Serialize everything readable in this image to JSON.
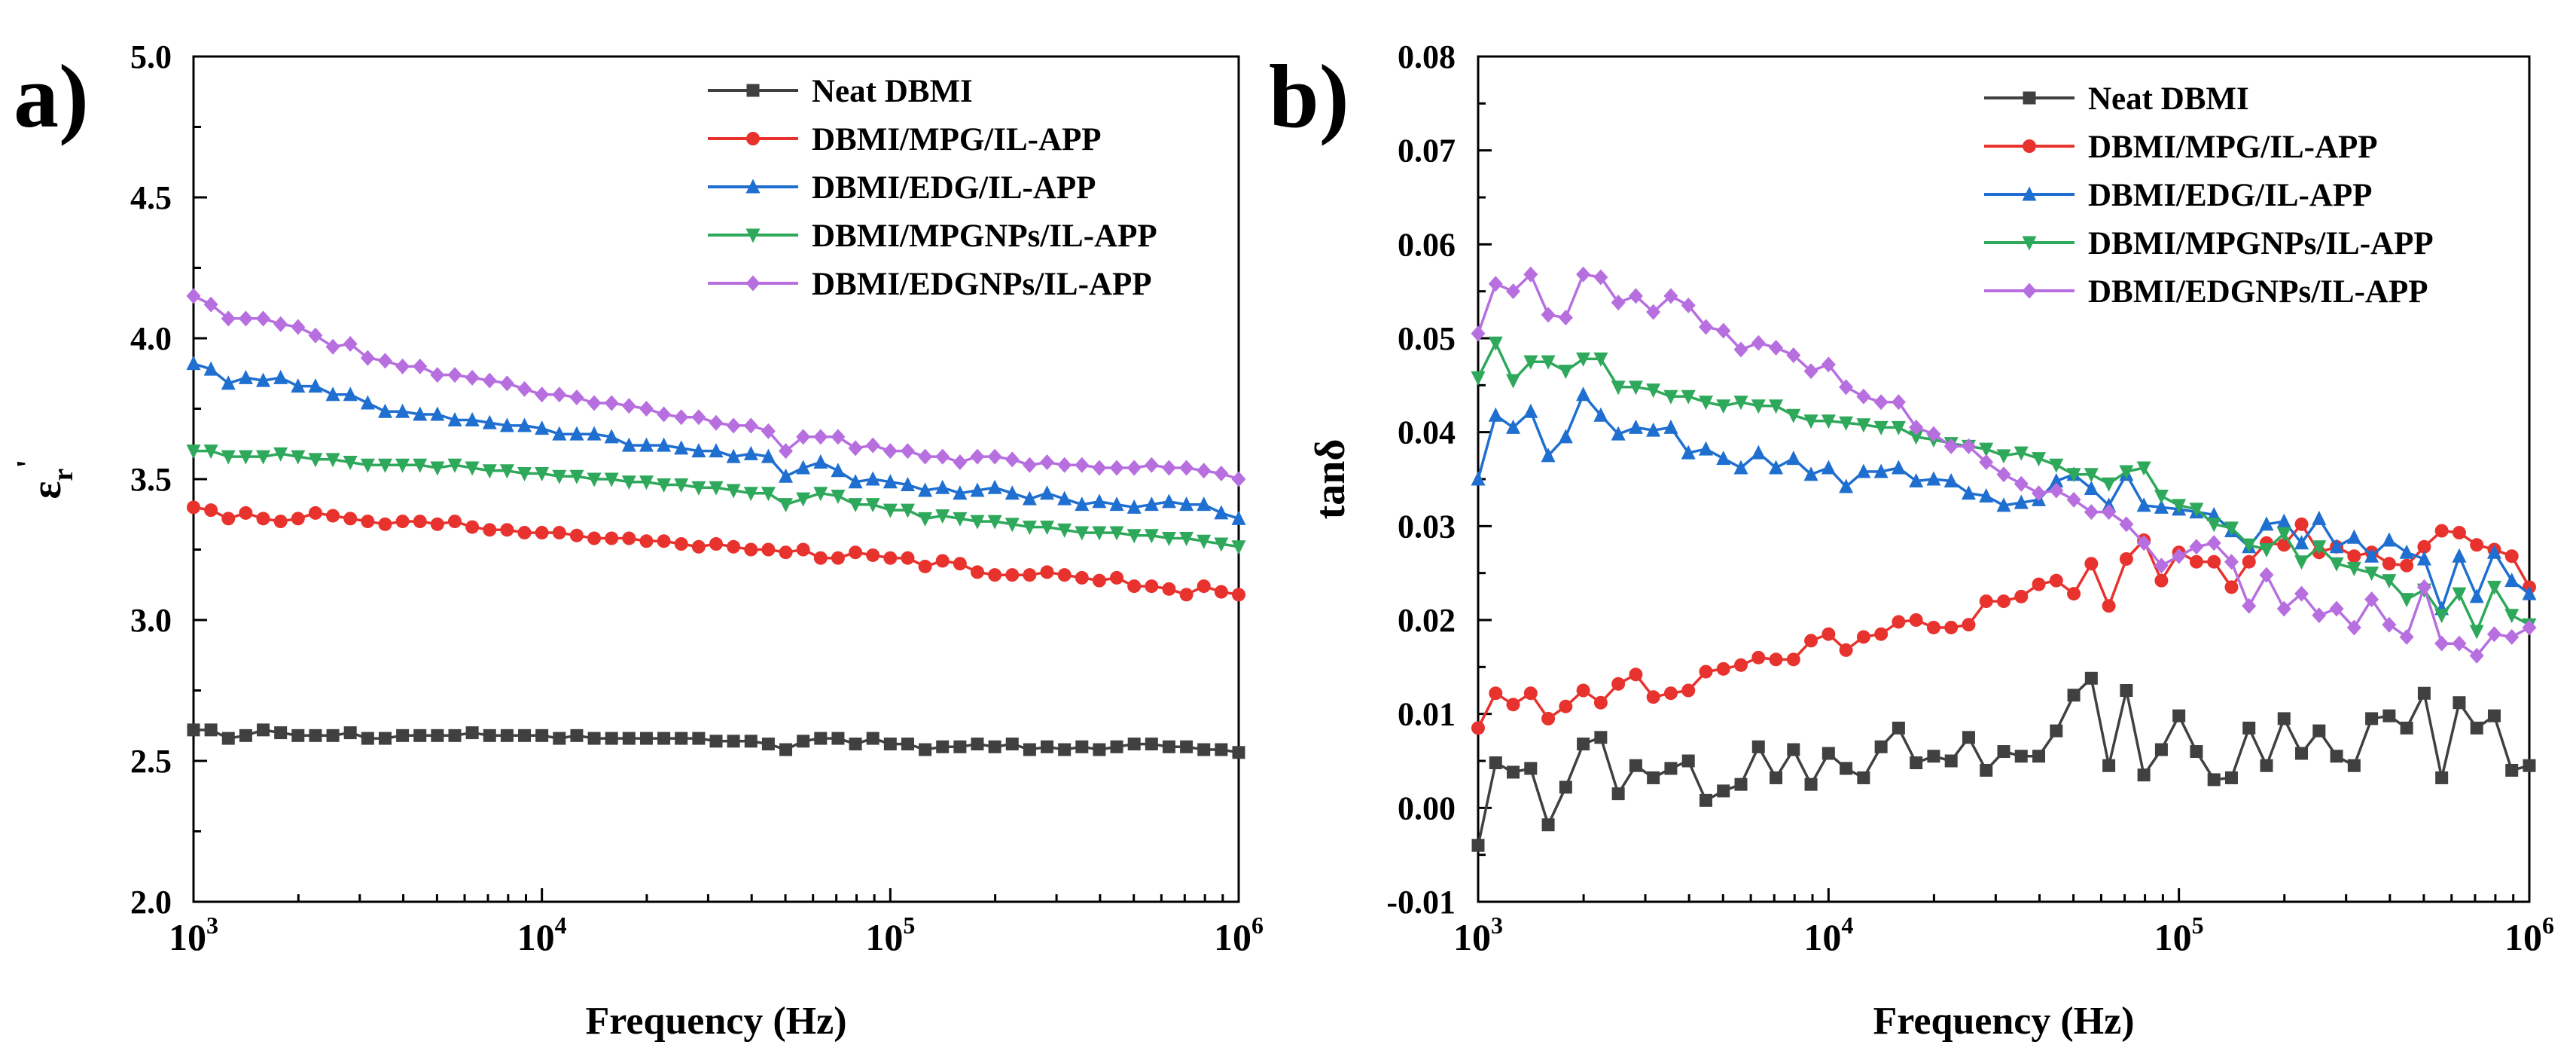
{
  "chart_data": [
    {
      "panel_label": "a)",
      "type": "line",
      "x_scale": "log",
      "xlabel": "Frequency (Hz)",
      "ylabel": "ε",
      "ylabel_sub": "r",
      "ylabel_sup": "'",
      "xlim": [
        1000,
        1000000
      ],
      "ylim": [
        2.0,
        5.0
      ],
      "yticks": [
        2.0,
        2.5,
        3.0,
        3.5,
        4.0,
        4.5,
        5.0
      ],
      "ytick_labels": [
        "2.0",
        "2.5",
        "3.0",
        "3.5",
        "4.0",
        "4.5",
        "5.0"
      ],
      "xticks": [
        1000,
        10000,
        100000,
        1000000
      ],
      "xtick_base": [
        "10",
        "10",
        "10",
        "10"
      ],
      "xtick_exp": [
        "3",
        "4",
        "5",
        "6"
      ],
      "legend_position": "top-right",
      "n_points": 61,
      "series": [
        {
          "name": "Neat DBMI",
          "color": "#404040",
          "marker": "square",
          "values": [
            2.61,
            2.61,
            2.58,
            2.59,
            2.61,
            2.6,
            2.59,
            2.59,
            2.59,
            2.6,
            2.58,
            2.58,
            2.59,
            2.59,
            2.59,
            2.59,
            2.6,
            2.59,
            2.59,
            2.59,
            2.59,
            2.58,
            2.59,
            2.58,
            2.58,
            2.58,
            2.58,
            2.58,
            2.58,
            2.58,
            2.57,
            2.57,
            2.57,
            2.56,
            2.54,
            2.57,
            2.58,
            2.58,
            2.56,
            2.58,
            2.56,
            2.56,
            2.54,
            2.55,
            2.55,
            2.56,
            2.55,
            2.56,
            2.54,
            2.55,
            2.54,
            2.55,
            2.54,
            2.55,
            2.56,
            2.56,
            2.55,
            2.55,
            2.54,
            2.54,
            2.53
          ]
        },
        {
          "name": "DBMI/MPG/IL-APP",
          "color": "#e8322e",
          "marker": "circle",
          "values": [
            3.4,
            3.39,
            3.36,
            3.38,
            3.36,
            3.35,
            3.36,
            3.38,
            3.37,
            3.36,
            3.35,
            3.34,
            3.35,
            3.35,
            3.34,
            3.35,
            3.33,
            3.32,
            3.32,
            3.31,
            3.31,
            3.31,
            3.3,
            3.29,
            3.29,
            3.29,
            3.28,
            3.28,
            3.27,
            3.26,
            3.27,
            3.26,
            3.25,
            3.25,
            3.24,
            3.25,
            3.22,
            3.22,
            3.24,
            3.23,
            3.22,
            3.22,
            3.19,
            3.21,
            3.2,
            3.17,
            3.16,
            3.16,
            3.16,
            3.17,
            3.16,
            3.15,
            3.14,
            3.15,
            3.12,
            3.12,
            3.11,
            3.09,
            3.12,
            3.1,
            3.09
          ]
        },
        {
          "name": "DBMI/EDG/IL-APP",
          "color": "#1f6fd0",
          "marker": "triangle-up",
          "values": [
            3.91,
            3.89,
            3.84,
            3.86,
            3.85,
            3.86,
            3.83,
            3.83,
            3.8,
            3.8,
            3.77,
            3.74,
            3.74,
            3.73,
            3.73,
            3.71,
            3.71,
            3.7,
            3.69,
            3.69,
            3.68,
            3.66,
            3.66,
            3.66,
            3.65,
            3.62,
            3.62,
            3.62,
            3.61,
            3.6,
            3.6,
            3.58,
            3.59,
            3.58,
            3.51,
            3.54,
            3.56,
            3.53,
            3.49,
            3.5,
            3.49,
            3.48,
            3.46,
            3.47,
            3.45,
            3.46,
            3.47,
            3.45,
            3.43,
            3.45,
            3.43,
            3.41,
            3.42,
            3.41,
            3.4,
            3.41,
            3.42,
            3.41,
            3.41,
            3.38,
            3.36
          ]
        },
        {
          "name": "DBMI/MPGNPs/IL-APP",
          "color": "#2ea85a",
          "marker": "triangle-down",
          "values": [
            3.6,
            3.6,
            3.58,
            3.58,
            3.58,
            3.59,
            3.58,
            3.57,
            3.57,
            3.56,
            3.55,
            3.55,
            3.55,
            3.55,
            3.54,
            3.55,
            3.54,
            3.53,
            3.53,
            3.52,
            3.52,
            3.51,
            3.51,
            3.5,
            3.5,
            3.49,
            3.49,
            3.48,
            3.48,
            3.47,
            3.47,
            3.46,
            3.45,
            3.45,
            3.41,
            3.43,
            3.45,
            3.44,
            3.41,
            3.41,
            3.39,
            3.39,
            3.36,
            3.37,
            3.36,
            3.35,
            3.35,
            3.34,
            3.33,
            3.33,
            3.32,
            3.31,
            3.31,
            3.31,
            3.3,
            3.3,
            3.29,
            3.29,
            3.28,
            3.27,
            3.26
          ]
        },
        {
          "name": "DBMI/EDGNPs/IL-APP",
          "color": "#b76fe0",
          "marker": "diamond",
          "values": [
            4.15,
            4.12,
            4.07,
            4.07,
            4.07,
            4.05,
            4.04,
            4.01,
            3.97,
            3.98,
            3.93,
            3.92,
            3.9,
            3.9,
            3.87,
            3.87,
            3.86,
            3.85,
            3.84,
            3.82,
            3.8,
            3.8,
            3.79,
            3.77,
            3.77,
            3.76,
            3.75,
            3.73,
            3.72,
            3.72,
            3.7,
            3.69,
            3.69,
            3.67,
            3.6,
            3.65,
            3.65,
            3.65,
            3.61,
            3.62,
            3.6,
            3.6,
            3.58,
            3.58,
            3.56,
            3.58,
            3.58,
            3.57,
            3.55,
            3.56,
            3.55,
            3.55,
            3.54,
            3.54,
            3.54,
            3.55,
            3.54,
            3.54,
            3.53,
            3.52,
            3.5
          ]
        }
      ]
    },
    {
      "panel_label": "b)",
      "type": "line",
      "x_scale": "log",
      "xlabel": "Frequency (Hz)",
      "ylabel": "tanδ",
      "xlim": [
        1000,
        1000000
      ],
      "ylim": [
        -0.01,
        0.08
      ],
      "yticks": [
        -0.01,
        0.0,
        0.01,
        0.02,
        0.03,
        0.04,
        0.05,
        0.06,
        0.07,
        0.08
      ],
      "ytick_labels": [
        "-0.01",
        "0.00",
        "0.01",
        "0.02",
        "0.03",
        "0.04",
        "0.05",
        "0.06",
        "0.07",
        "0.08"
      ],
      "xticks": [
        1000,
        10000,
        100000,
        1000000
      ],
      "xtick_base": [
        "10",
        "10",
        "10",
        "10"
      ],
      "xtick_exp": [
        "3",
        "4",
        "5",
        "6"
      ],
      "legend_position": "top-right",
      "n_points": 61,
      "series": [
        {
          "name": "Neat DBMI",
          "color": "#404040",
          "marker": "square",
          "values": [
            -0.004,
            0.0048,
            0.0038,
            0.0042,
            -0.0018,
            0.0022,
            0.0068,
            0.0075,
            0.0015,
            0.0045,
            0.0032,
            0.0042,
            0.005,
            0.0008,
            0.0018,
            0.0025,
            0.0065,
            0.0032,
            0.0062,
            0.0025,
            0.0058,
            0.0042,
            0.0032,
            0.0065,
            0.0085,
            0.0048,
            0.0055,
            0.005,
            0.0075,
            0.004,
            0.006,
            0.0055,
            0.0055,
            0.0082,
            0.012,
            0.0138,
            0.0045,
            0.0125,
            0.0035,
            0.0062,
            0.0098,
            0.006,
            0.003,
            0.0032,
            0.0085,
            0.0045,
            0.0095,
            0.0058,
            0.0082,
            0.0055,
            0.0045,
            0.0095,
            0.0098,
            0.0085,
            0.0122,
            0.0032,
            0.0112,
            0.0085,
            0.0098,
            0.004,
            0.0045
          ]
        },
        {
          "name": "DBMI/MPG/IL-APP",
          "color": "#e8322e",
          "marker": "circle",
          "values": [
            0.0085,
            0.0122,
            0.011,
            0.0122,
            0.0095,
            0.0108,
            0.0125,
            0.0112,
            0.0132,
            0.0142,
            0.0118,
            0.0122,
            0.0125,
            0.0145,
            0.0148,
            0.0152,
            0.016,
            0.0158,
            0.0158,
            0.0178,
            0.0185,
            0.0168,
            0.0182,
            0.0185,
            0.0198,
            0.02,
            0.0192,
            0.0192,
            0.0195,
            0.022,
            0.022,
            0.0225,
            0.0238,
            0.0242,
            0.0228,
            0.026,
            0.0215,
            0.0265,
            0.0285,
            0.0242,
            0.0272,
            0.0262,
            0.0262,
            0.0235,
            0.0262,
            0.0282,
            0.028,
            0.0302,
            0.0272,
            0.0278,
            0.0268,
            0.0272,
            0.026,
            0.0258,
            0.0278,
            0.0295,
            0.0293,
            0.028,
            0.0275,
            0.0268,
            0.0235
          ]
        },
        {
          "name": "DBMI/EDG/IL-APP",
          "color": "#1f6fd0",
          "marker": "triangle-up",
          "values": [
            0.035,
            0.0418,
            0.0405,
            0.0422,
            0.0375,
            0.0395,
            0.044,
            0.0418,
            0.0398,
            0.0405,
            0.0402,
            0.0405,
            0.0378,
            0.0382,
            0.0372,
            0.0362,
            0.0378,
            0.0362,
            0.0372,
            0.0355,
            0.0362,
            0.0342,
            0.0358,
            0.0358,
            0.0362,
            0.0348,
            0.035,
            0.0348,
            0.0335,
            0.0332,
            0.0322,
            0.0325,
            0.0328,
            0.0348,
            0.0355,
            0.034,
            0.0322,
            0.0355,
            0.0322,
            0.032,
            0.0318,
            0.0315,
            0.0312,
            0.0295,
            0.0278,
            0.0302,
            0.0305,
            0.0282,
            0.0308,
            0.0278,
            0.0288,
            0.0268,
            0.0285,
            0.0272,
            0.0265,
            0.0212,
            0.0268,
            0.0225,
            0.0272,
            0.0242,
            0.0228
          ]
        },
        {
          "name": "DBMI/MPGNPs/IL-APP",
          "color": "#2ea85a",
          "marker": "triangle-down",
          "values": [
            0.0458,
            0.0495,
            0.0455,
            0.0475,
            0.0475,
            0.0465,
            0.0478,
            0.0478,
            0.0448,
            0.0448,
            0.0445,
            0.0438,
            0.0438,
            0.0432,
            0.0428,
            0.0432,
            0.0428,
            0.0428,
            0.0418,
            0.0412,
            0.0412,
            0.041,
            0.0408,
            0.0405,
            0.0405,
            0.0395,
            0.0392,
            0.0388,
            0.0385,
            0.0382,
            0.0375,
            0.0378,
            0.0372,
            0.0365,
            0.0355,
            0.0355,
            0.0345,
            0.0358,
            0.0362,
            0.0332,
            0.0322,
            0.0318,
            0.0302,
            0.0298,
            0.028,
            0.0275,
            0.0292,
            0.0262,
            0.0278,
            0.026,
            0.0255,
            0.025,
            0.0242,
            0.0222,
            0.0232,
            0.0205,
            0.0228,
            0.0188,
            0.0235,
            0.0205,
            0.0195
          ]
        },
        {
          "name": "DBMI/EDGNPs/IL-APP",
          "color": "#b76fe0",
          "marker": "diamond",
          "values": [
            0.0505,
            0.0558,
            0.055,
            0.0568,
            0.0525,
            0.0522,
            0.0568,
            0.0565,
            0.0538,
            0.0545,
            0.0528,
            0.0545,
            0.0535,
            0.0512,
            0.0508,
            0.0488,
            0.0495,
            0.049,
            0.0482,
            0.0465,
            0.0472,
            0.0448,
            0.0438,
            0.0432,
            0.0432,
            0.0405,
            0.0398,
            0.0385,
            0.0385,
            0.0368,
            0.0355,
            0.0345,
            0.0335,
            0.0338,
            0.0328,
            0.0315,
            0.0315,
            0.0302,
            0.0282,
            0.0258,
            0.0268,
            0.0278,
            0.0282,
            0.0262,
            0.0215,
            0.0248,
            0.0212,
            0.0228,
            0.0205,
            0.0212,
            0.0192,
            0.0222,
            0.0195,
            0.0182,
            0.0235,
            0.0175,
            0.0175,
            0.0162,
            0.0185,
            0.0182,
            0.0192
          ]
        }
      ]
    }
  ]
}
